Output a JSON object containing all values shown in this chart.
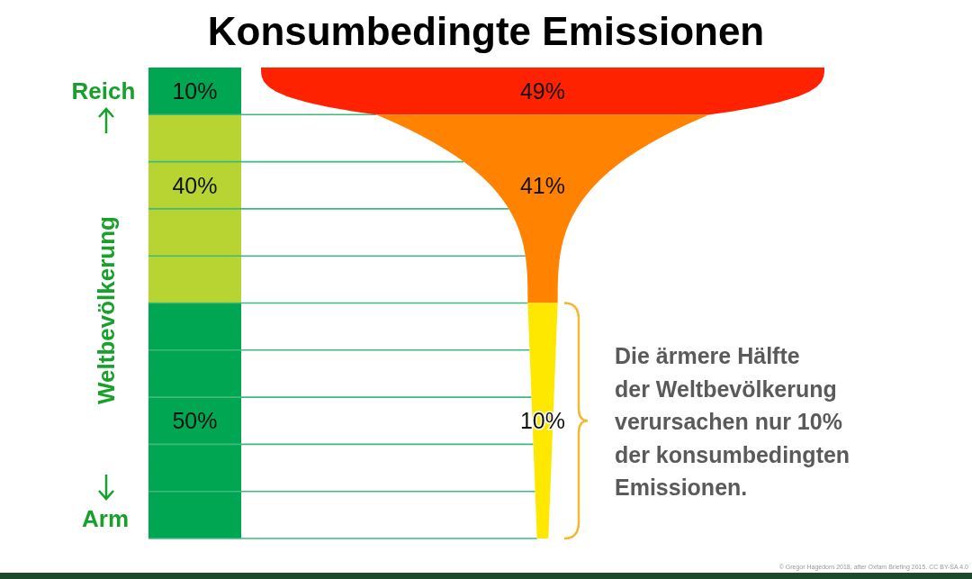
{
  "chart_data": [
    {
      "type": "other",
      "title": "Konsumbedingte Emissionen",
      "ylabel": "Weltbevölkerung",
      "categories": [
        null,
        null,
        null
      ],
      "values": [
        10,
        40,
        50
      ],
      "colors": [
        "#00a651",
        "#b7d433",
        "#00a651"
      ],
      "value_labels": [
        "10%",
        "40%",
        "50%"
      ],
      "annotations": [
        "Reich",
        "Arm"
      ]
    },
    {
      "type": "other",
      "categories": [
        null,
        null,
        null
      ],
      "values": [
        49,
        41,
        10
      ],
      "colors": [
        "#ff2200",
        "#ff8200",
        "#ffe800"
      ],
      "value_labels": [
        "49%",
        "41%",
        "10%"
      ],
      "annotations": [
        "Die ärmere Hälfte\nder Weltbevölkerung\nverursachen nur 10%\nder konsumbedingten\nEmissionen.",
        "© Gregor Hagedorn 2018, after Oxfam Briefing 2015. CC BY-SA 4.0"
      ]
    }
  ]
}
